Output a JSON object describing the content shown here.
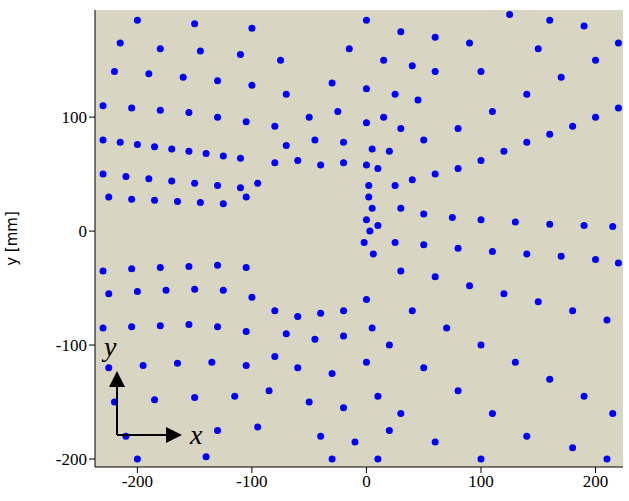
{
  "chart_data": {
    "type": "scatter",
    "x": [
      -230,
      -215,
      -200,
      -185,
      -170,
      -155,
      -140,
      -125,
      -110,
      -230,
      -210,
      -190,
      -170,
      -150,
      -130,
      -110,
      -95,
      -225,
      -205,
      -185,
      -165,
      -145,
      -125,
      -105,
      -230,
      -205,
      -180,
      -155,
      -130,
      -105,
      -80,
      -220,
      -190,
      -160,
      -130,
      -100,
      -70,
      -215,
      -180,
      -145,
      -110,
      -75,
      -200,
      -150,
      -100,
      -80,
      -60,
      -40,
      -20,
      0,
      10,
      -70,
      -45,
      -20,
      5,
      20,
      -50,
      -25,
      0,
      15,
      30,
      -30,
      0,
      25,
      45,
      -15,
      15,
      40,
      60,
      0,
      30,
      60,
      90,
      125,
      160,
      25,
      40,
      60,
      80,
      100,
      120,
      140,
      160,
      180,
      200,
      220,
      50,
      80,
      110,
      140,
      170,
      200,
      220,
      100,
      150,
      190,
      30,
      50,
      75,
      100,
      130,
      160,
      190,
      215,
      2,
      5,
      0,
      3,
      -2,
      6,
      2,
      10,
      25,
      50,
      80,
      110,
      140,
      170,
      200,
      220,
      30,
      60,
      90,
      120,
      150,
      180,
      210,
      40,
      70,
      100,
      130,
      160,
      190,
      215,
      20,
      50,
      80,
      110,
      140,
      30,
      60,
      100,
      180,
      210,
      -80,
      -60,
      -40,
      -20,
      0,
      -70,
      -45,
      -20,
      5,
      -60,
      -30,
      0,
      -50,
      -20,
      10,
      -40,
      -10,
      20,
      -30,
      10,
      -230,
      -205,
      -180,
      -155,
      -130,
      -105,
      -225,
      -200,
      -175,
      -150,
      -125,
      -100,
      -230,
      -205,
      -180,
      -155,
      -130,
      -105,
      -225,
      -195,
      -165,
      -135,
      -105,
      -80,
      -220,
      -185,
      -150,
      -115,
      -85,
      -210,
      -170,
      -130,
      -95,
      -200,
      -140
    ],
    "values": [
      80,
      78,
      76,
      74,
      72,
      70,
      68,
      66,
      64,
      50,
      48,
      46,
      44,
      42,
      40,
      38,
      42,
      30,
      28,
      27,
      26,
      25,
      24,
      30,
      110,
      108,
      106,
      104,
      100,
      96,
      92,
      140,
      138,
      135,
      132,
      128,
      120,
      165,
      160,
      158,
      155,
      150,
      185,
      182,
      178,
      60,
      62,
      58,
      60,
      58,
      55,
      75,
      80,
      78,
      72,
      70,
      100,
      105,
      95,
      100,
      90,
      130,
      125,
      120,
      115,
      160,
      150,
      145,
      140,
      185,
      175,
      170,
      165,
      190,
      185,
      40,
      45,
      50,
      55,
      62,
      70,
      78,
      85,
      92,
      100,
      108,
      80,
      90,
      105,
      120,
      135,
      150,
      165,
      140,
      160,
      180,
      20,
      15,
      12,
      10,
      8,
      6,
      5,
      4,
      30,
      20,
      10,
      0,
      -10,
      -20,
      40,
      5,
      -10,
      -12,
      -15,
      -18,
      -20,
      -22,
      -25,
      -28,
      -35,
      -40,
      -48,
      -55,
      -62,
      -70,
      -78,
      -70,
      -85,
      -100,
      -115,
      -130,
      -145,
      -160,
      -100,
      -120,
      -140,
      -160,
      -180,
      -160,
      -185,
      -200,
      -190,
      -200,
      -70,
      -75,
      -72,
      -70,
      -60,
      -90,
      -95,
      -92,
      -85,
      -120,
      -125,
      -115,
      -150,
      -155,
      -145,
      -180,
      -185,
      -175,
      -200,
      -200,
      -35,
      -33,
      -32,
      -31,
      -30,
      -32,
      -55,
      -53,
      -52,
      -51,
      -52,
      -58,
      -85,
      -84,
      -83,
      -82,
      -84,
      -88,
      -120,
      -118,
      -116,
      -115,
      -118,
      -110,
      -150,
      -148,
      -146,
      -145,
      -140,
      -180,
      -178,
      -175,
      -172,
      -200,
      -198
    ],
    "color": "#0000ff",
    "marker": "circle",
    "xlim": [
      -237,
      224
    ],
    "ylim": [
      -207,
      194
    ],
    "xticks": [
      -200,
      -100,
      0,
      100,
      200
    ],
    "yticks": [
      -200,
      -100,
      0,
      100
    ],
    "ylabel": "y [mm]",
    "annotations": [
      "x",
      "y"
    ]
  }
}
